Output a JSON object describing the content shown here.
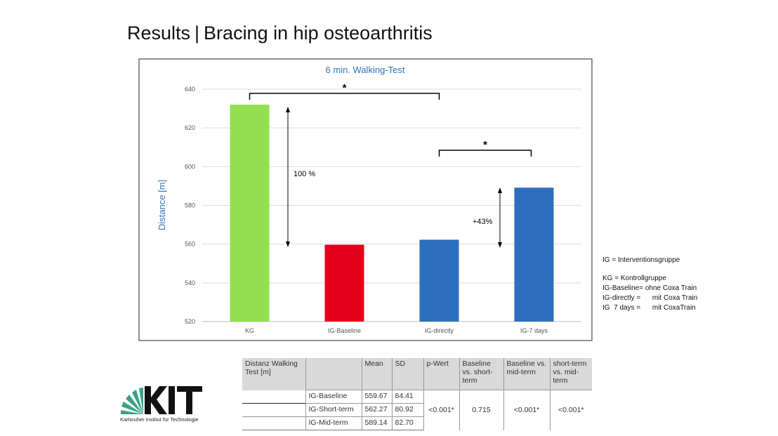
{
  "slide": {
    "title_prefix": "Results",
    "title_separator": "|",
    "title_main": "Bracing in hip osteoarthritis"
  },
  "chart_data": {
    "type": "bar",
    "title": "6 min. Walking-Test",
    "xlabel": "",
    "ylabel": "Distance [m]",
    "categories": [
      "KG",
      "IG-Baseline",
      "IG-directly",
      "IG-7 days"
    ],
    "values": [
      632,
      559.67,
      562.27,
      589.14
    ],
    "colors": [
      "#92e051",
      "#e3001b",
      "#2e6fbd",
      "#2e6fbd"
    ],
    "ylim": [
      520,
      640
    ],
    "yticks": [
      520,
      540,
      560,
      580,
      600,
      620,
      640
    ],
    "grid": true,
    "annotations": [
      {
        "type": "bracket",
        "from": "KG",
        "to": "IG-directly",
        "label": "*"
      },
      {
        "type": "bracket",
        "from": "IG-directly",
        "to": "IG-7 days",
        "label": "*"
      },
      {
        "type": "arrow",
        "label": "100 %"
      },
      {
        "type": "arrow",
        "label": "+43%"
      }
    ],
    "title_color": "#2e75b6"
  },
  "legend": [
    "IG = Interventionsgruppe",
    "KG = Kontrollgruppe",
    "IG-Baseline= ohne Coxa Train",
    "IG-directly =      mit Coxa Train",
    "IG  7 days =      mit CoxaTrain"
  ],
  "table": {
    "headers": [
      "Distanz Walking Test [m]",
      "",
      "Mean",
      "SD",
      "p-Wert",
      "Baseline vs. short-term",
      "Baseline vs. mid-term",
      "short-term vs. mid-term"
    ],
    "rows": [
      [
        "IG-Baseline",
        "559.67",
        "84.41"
      ],
      [
        "IG-Short-term",
        "562.27",
        "80.92"
      ],
      [
        "IG-Mid-term",
        "589.14",
        "82.70"
      ]
    ],
    "p_values": [
      "<0.001*",
      "0.715",
      "<0.001*",
      "<0.001*"
    ]
  },
  "logo": {
    "text": "KIT",
    "subtitle": "Karlsruher Institut für Technologie"
  }
}
